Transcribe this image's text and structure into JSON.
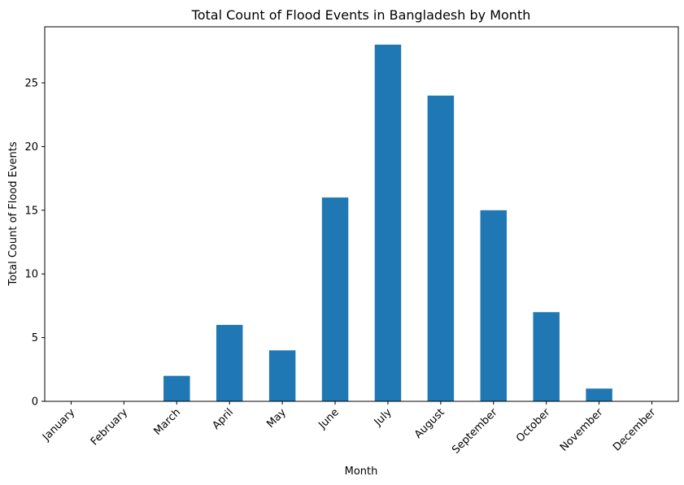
{
  "chart_data": {
    "type": "bar",
    "title": "Total Count of Flood Events in Bangladesh by Month",
    "xlabel": "Month",
    "ylabel": "Total Count of Flood Events",
    "categories": [
      "January",
      "February",
      "March",
      "April",
      "May",
      "June",
      "July",
      "August",
      "September",
      "October",
      "November",
      "December"
    ],
    "values": [
      0,
      0,
      2,
      6,
      4,
      16,
      28,
      24,
      15,
      7,
      1,
      0
    ],
    "ylim": [
      0,
      29.4
    ],
    "yticks": [
      0,
      5,
      10,
      15,
      20,
      25
    ],
    "bar_color": "#1f77b4",
    "grid": false,
    "legend": "none"
  }
}
